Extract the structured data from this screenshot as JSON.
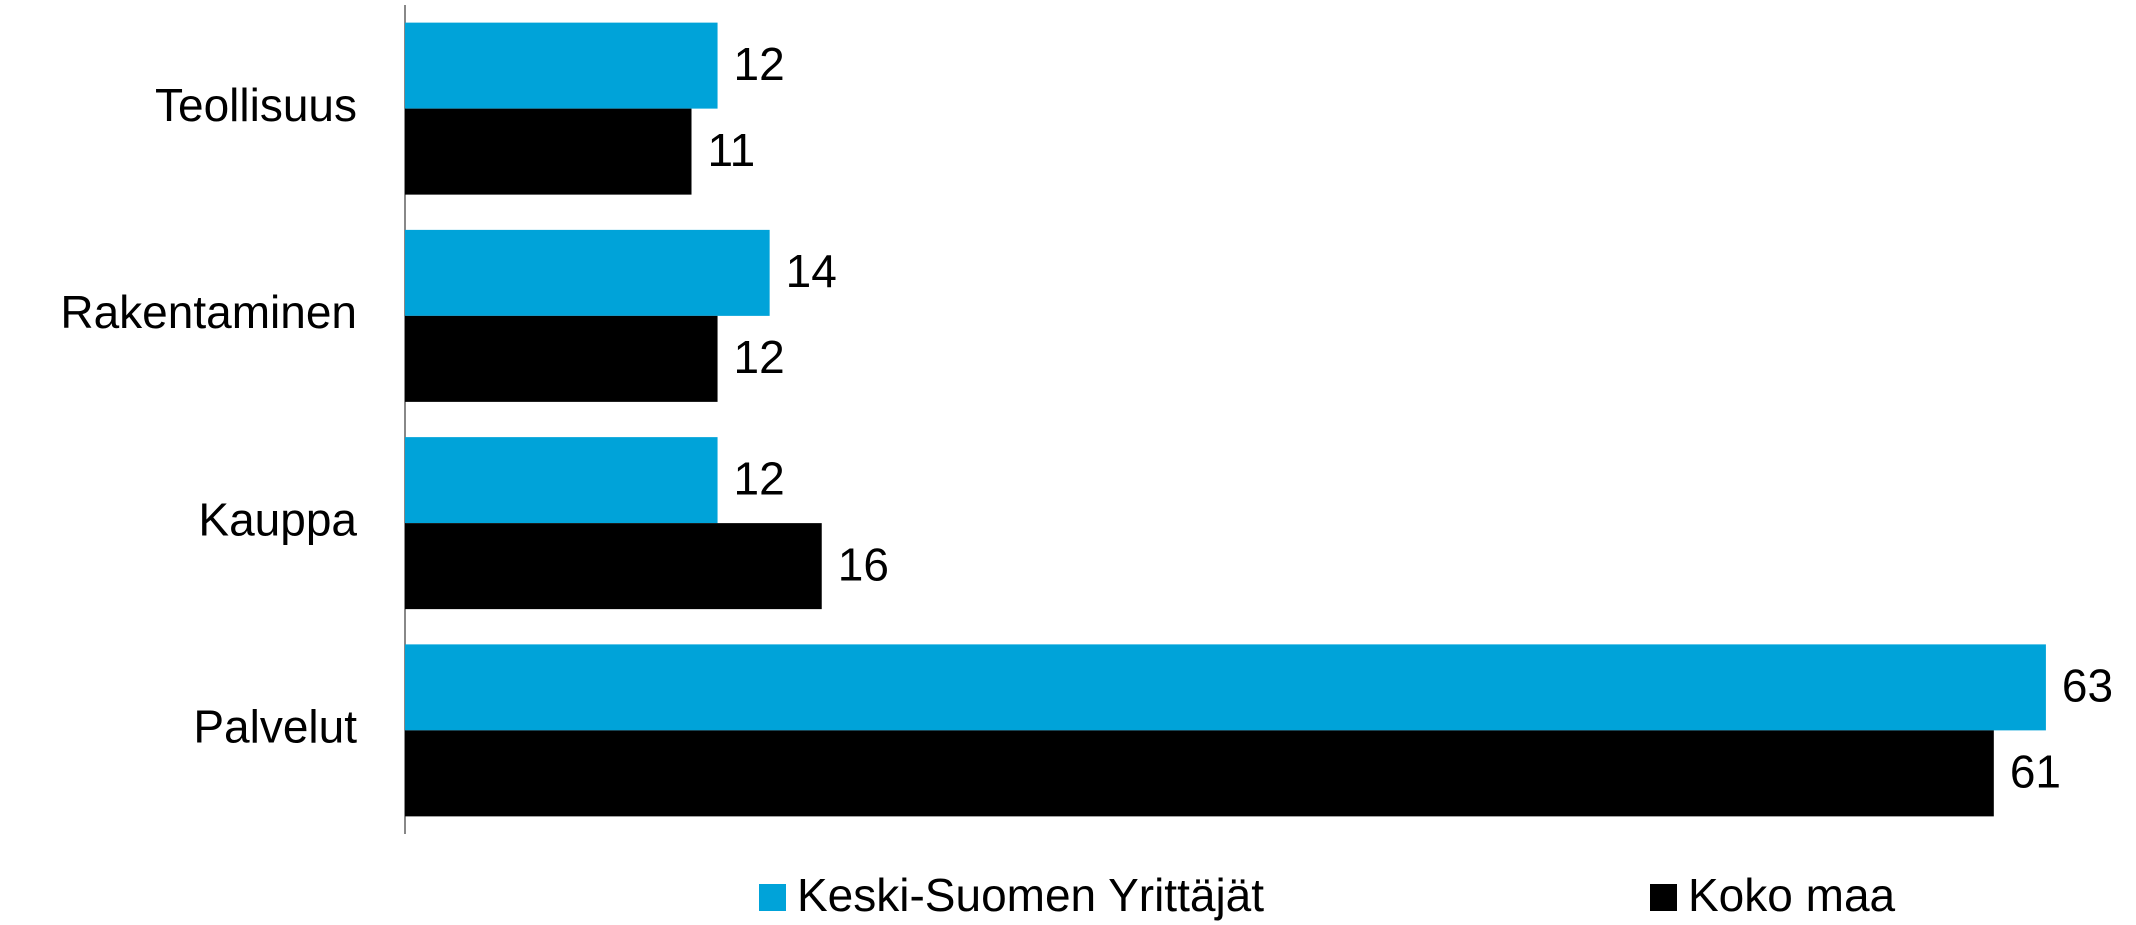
{
  "chart_data": {
    "type": "bar",
    "orientation": "horizontal",
    "categories": [
      "Teollisuus",
      "Rakentaminen",
      "Kauppa",
      "Palvelut"
    ],
    "series": [
      {
        "name": "Keski-Suomen Yrittäjät",
        "color": "#00a3d9",
        "values": [
          12,
          14,
          12,
          63
        ]
      },
      {
        "name": "Koko maa",
        "color": "#000000",
        "values": [
          11,
          12,
          16,
          61
        ]
      }
    ],
    "xlim": [
      0,
      65
    ],
    "legend": "bottom"
  }
}
